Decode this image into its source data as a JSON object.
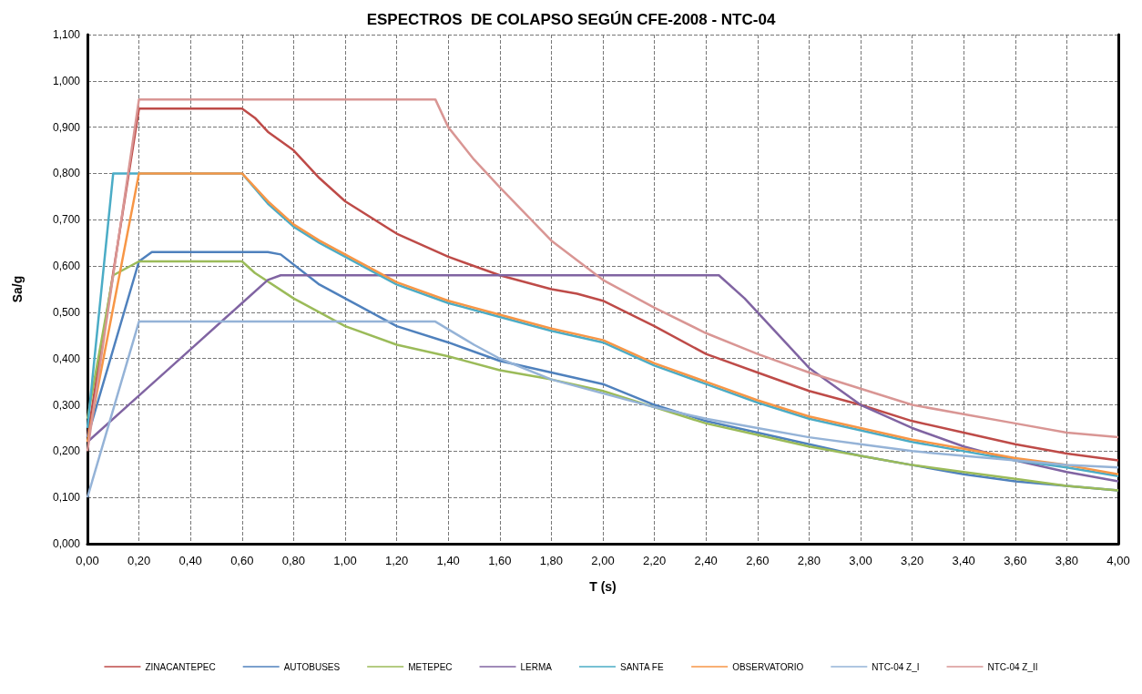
{
  "chart_data": {
    "type": "line",
    "title": "ESPECTROS  DE COLAPSO SEGÚN CFE-2008 - NTC-04",
    "xlabel": "T (s)",
    "ylabel": "Sa/g",
    "xlim": [
      0,
      4
    ],
    "ylim": [
      0,
      1.1
    ],
    "xticks": [
      {
        "value": 0,
        "label": "0,00"
      },
      {
        "value": 0.2,
        "label": "0,20"
      },
      {
        "value": 0.4,
        "label": "0,40"
      },
      {
        "value": 0.6,
        "label": "0,60"
      },
      {
        "value": 0.8,
        "label": "0,80"
      },
      {
        "value": 1,
        "label": "1,00"
      },
      {
        "value": 1.2,
        "label": "1,20"
      },
      {
        "value": 1.4,
        "label": "1,40"
      },
      {
        "value": 1.6,
        "label": "1,60"
      },
      {
        "value": 1.8,
        "label": "1,80"
      },
      {
        "value": 2,
        "label": "2,00"
      },
      {
        "value": 2.2,
        "label": "2,20"
      },
      {
        "value": 2.4,
        "label": "2,40"
      },
      {
        "value": 2.6,
        "label": "2,60"
      },
      {
        "value": 2.8,
        "label": "2,80"
      },
      {
        "value": 3,
        "label": "3,00"
      },
      {
        "value": 3.2,
        "label": "3,20"
      },
      {
        "value": 3.4,
        "label": "3,40"
      },
      {
        "value": 3.6,
        "label": "3,60"
      },
      {
        "value": 3.8,
        "label": "3,80"
      },
      {
        "value": 4,
        "label": "4,00"
      }
    ],
    "yticks": [
      {
        "value": 0,
        "label": "0,000"
      },
      {
        "value": 0.1,
        "label": "0,100"
      },
      {
        "value": 0.2,
        "label": "0,200"
      },
      {
        "value": 0.3,
        "label": "0,300"
      },
      {
        "value": 0.4,
        "label": "0,400"
      },
      {
        "value": 0.5,
        "label": "0,500"
      },
      {
        "value": 0.6,
        "label": "0,600"
      },
      {
        "value": 0.7,
        "label": "0,700"
      },
      {
        "value": 0.8,
        "label": "0,800"
      },
      {
        "value": 0.9,
        "label": "0,900"
      },
      {
        "value": 1,
        "label": "1,000"
      },
      {
        "value": 1.1,
        "label": "1,100"
      }
    ],
    "grid": true,
    "legend": "bottom",
    "marker": "none",
    "line_style": "solid",
    "series": [
      {
        "name": "ZINACANTEPEC",
        "color": "#be4b48",
        "x": [
          0,
          0.2,
          0.6,
          0.65,
          0.7,
          0.8,
          0.9,
          1,
          1.2,
          1.4,
          1.6,
          1.8,
          1.9,
          2,
          2.2,
          2.4,
          2.6,
          2.8,
          3,
          3.2,
          3.4,
          3.6,
          3.8,
          4
        ],
        "values": [
          0.23,
          0.94,
          0.94,
          0.92,
          0.89,
          0.85,
          0.79,
          0.74,
          0.67,
          0.62,
          0.58,
          0.55,
          0.54,
          0.525,
          0.47,
          0.41,
          0.37,
          0.33,
          0.3,
          0.265,
          0.24,
          0.215,
          0.195,
          0.18
        ]
      },
      {
        "name": "AUTOBUSES",
        "color": "#4f81bd",
        "x": [
          0,
          0.2,
          0.25,
          0.7,
          0.75,
          0.9,
          1,
          1.2,
          1.4,
          1.6,
          1.8,
          2,
          2.2,
          2.4,
          2.6,
          2.8,
          3,
          3.2,
          3.4,
          3.6,
          3.8,
          4
        ],
        "values": [
          0.23,
          0.61,
          0.63,
          0.63,
          0.625,
          0.56,
          0.53,
          0.47,
          0.435,
          0.395,
          0.37,
          0.345,
          0.3,
          0.265,
          0.24,
          0.215,
          0.19,
          0.17,
          0.15,
          0.135,
          0.125,
          0.115
        ]
      },
      {
        "name": "METEPEC",
        "color": "#9bbb59",
        "x": [
          0,
          0.1,
          0.2,
          0.6,
          0.65,
          0.8,
          1,
          1.2,
          1.4,
          1.6,
          1.8,
          2,
          2.2,
          2.4,
          2.6,
          2.8,
          3,
          3.2,
          3.4,
          3.6,
          3.8,
          4
        ],
        "values": [
          0.27,
          0.58,
          0.61,
          0.61,
          0.585,
          0.53,
          0.47,
          0.43,
          0.405,
          0.375,
          0.355,
          0.33,
          0.295,
          0.26,
          0.235,
          0.21,
          0.19,
          0.17,
          0.155,
          0.14,
          0.125,
          0.115
        ]
      },
      {
        "name": "LERMA",
        "color": "#8064a2",
        "x": [
          0,
          0.2,
          0.4,
          0.6,
          0.7,
          0.75,
          2.45,
          2.55,
          2.7,
          2.8,
          3,
          3.2,
          3.4,
          3.6,
          3.8,
          4
        ],
        "values": [
          0.22,
          0.32,
          0.42,
          0.52,
          0.57,
          0.58,
          0.58,
          0.53,
          0.44,
          0.38,
          0.3,
          0.25,
          0.21,
          0.18,
          0.155,
          0.135
        ]
      },
      {
        "name": "SANTA FE",
        "color": "#4bacc6",
        "x": [
          0,
          0.1,
          0.6,
          0.7,
          0.8,
          0.9,
          1,
          1.2,
          1.4,
          1.6,
          1.8,
          2,
          2.2,
          2.4,
          2.6,
          2.8,
          3,
          3.2,
          3.4,
          3.6,
          3.8,
          4
        ],
        "values": [
          0.25,
          0.8,
          0.8,
          0.735,
          0.685,
          0.65,
          0.62,
          0.56,
          0.52,
          0.49,
          0.46,
          0.435,
          0.385,
          0.345,
          0.305,
          0.27,
          0.245,
          0.22,
          0.2,
          0.18,
          0.165,
          0.146
        ]
      },
      {
        "name": "OBSERVATORIO",
        "color": "#f79646",
        "x": [
          0,
          0.2,
          0.6,
          0.7,
          0.8,
          0.9,
          1,
          1.2,
          1.4,
          1.6,
          1.8,
          2,
          2.2,
          2.4,
          2.6,
          2.8,
          3,
          3.2,
          3.4,
          3.6,
          3.8,
          4
        ],
        "values": [
          0.22,
          0.8,
          0.8,
          0.74,
          0.69,
          0.655,
          0.625,
          0.565,
          0.525,
          0.495,
          0.465,
          0.44,
          0.39,
          0.35,
          0.31,
          0.275,
          0.25,
          0.225,
          0.205,
          0.185,
          0.17,
          0.15
        ]
      },
      {
        "name": "NTC-04 Z_I",
        "color": "#95b3d7",
        "x": [
          0,
          0.2,
          1.35,
          1.5,
          1.6,
          1.8,
          2,
          2.2,
          2.4,
          2.6,
          2.8,
          3,
          3.2,
          3.4,
          3.6,
          3.8,
          4
        ],
        "values": [
          0.1,
          0.48,
          0.48,
          0.43,
          0.4,
          0.355,
          0.325,
          0.295,
          0.27,
          0.25,
          0.23,
          0.215,
          0.2,
          0.19,
          0.18,
          0.17,
          0.165
        ]
      },
      {
        "name": "NTC-04 Z_II",
        "color": "#d99694",
        "x": [
          0,
          0.2,
          1.35,
          1.4,
          1.5,
          1.6,
          1.8,
          2,
          2.2,
          2.4,
          2.6,
          2.8,
          3,
          3.2,
          3.4,
          3.6,
          3.8,
          4
        ],
        "values": [
          0.2,
          0.96,
          0.96,
          0.9,
          0.83,
          0.77,
          0.655,
          0.57,
          0.51,
          0.455,
          0.41,
          0.37,
          0.335,
          0.3,
          0.28,
          0.26,
          0.24,
          0.23
        ]
      }
    ]
  }
}
